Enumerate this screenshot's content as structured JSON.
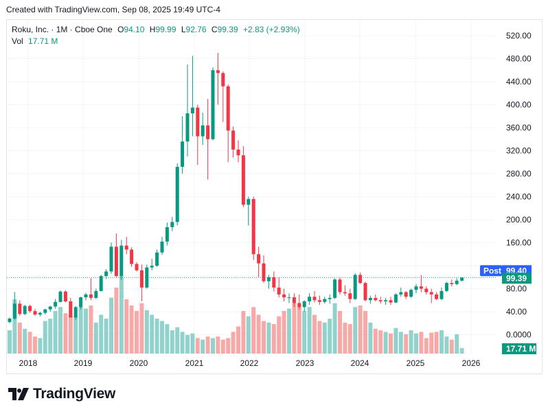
{
  "header": {
    "created_text": "Created with TradingView.com, Sep 08, 2025 19:49 UTC-4"
  },
  "legend": {
    "symbol": "Roku, Inc. · 1M · Cboe One",
    "o_label": "O",
    "o_value": "94.10",
    "h_label": "H",
    "h_value": "99.99",
    "l_label": "L",
    "l_value": "92.76",
    "c_label": "C",
    "c_value": "99.39",
    "change": "+2.83 (+2.93%)",
    "vol_label": "Vol",
    "vol_value": "17.71 M"
  },
  "price_tags": {
    "post_label": "Post",
    "post_value": "99.40",
    "last_value": "99.39",
    "vol_value": "17.71 M"
  },
  "brand": {
    "name": "TradingView",
    "logo_icon": "tradingview-logo-icon"
  },
  "colors": {
    "up": "#089981",
    "down": "#f23645",
    "vol_up": "#92d2cc",
    "vol_down": "#f7a9a7",
    "post": "#2962ff"
  },
  "chart_data": {
    "type": "candlestick",
    "interval": "1M",
    "y_ticks": [
      0,
      40,
      80,
      120,
      160,
      200,
      240,
      280,
      320,
      360,
      400,
      440,
      480,
      520
    ],
    "y_tick_labels": [
      "0.0000",
      "40.00",
      "80.00",
      "",
      "160.00",
      "200.00",
      "240.00",
      "280.00",
      "320.00",
      "360.00",
      "400.00",
      "440.00",
      "480.00",
      "520.00"
    ],
    "x_labels": [
      "2018",
      "2019",
      "2020",
      "2021",
      "2022",
      "2023",
      "2024",
      "2025",
      "2026"
    ],
    "ylim": [
      0,
      530
    ],
    "volume_scale_max": 100,
    "candles": [
      {
        "o": 22,
        "h": 30,
        "l": 20,
        "c": 28,
        "v": 30
      },
      {
        "o": 28,
        "h": 74,
        "l": 26,
        "c": 54,
        "v": 70
      },
      {
        "o": 54,
        "h": 60,
        "l": 33,
        "c": 36,
        "v": 40
      },
      {
        "o": 36,
        "h": 52,
        "l": 34,
        "c": 50,
        "v": 32
      },
      {
        "o": 50,
        "h": 52,
        "l": 38,
        "c": 41,
        "v": 28
      },
      {
        "o": 41,
        "h": 45,
        "l": 33,
        "c": 35,
        "v": 22
      },
      {
        "o": 35,
        "h": 40,
        "l": 32,
        "c": 38,
        "v": 20
      },
      {
        "o": 38,
        "h": 45,
        "l": 35,
        "c": 44,
        "v": 42
      },
      {
        "o": 44,
        "h": 50,
        "l": 40,
        "c": 49,
        "v": 45
      },
      {
        "o": 49,
        "h": 62,
        "l": 45,
        "c": 57,
        "v": 55
      },
      {
        "o": 57,
        "h": 77,
        "l": 56,
        "c": 75,
        "v": 60
      },
      {
        "o": 75,
        "h": 77,
        "l": 56,
        "c": 58,
        "v": 52
      },
      {
        "o": 58,
        "h": 64,
        "l": 30,
        "c": 30,
        "v": 50
      },
      {
        "o": 30,
        "h": 50,
        "l": 26,
        "c": 48,
        "v": 48
      },
      {
        "o": 48,
        "h": 66,
        "l": 44,
        "c": 65,
        "v": 60
      },
      {
        "o": 65,
        "h": 73,
        "l": 60,
        "c": 70,
        "v": 58
      },
      {
        "o": 70,
        "h": 98,
        "l": 60,
        "c": 64,
        "v": 62
      },
      {
        "o": 64,
        "h": 80,
        "l": 62,
        "c": 76,
        "v": 40
      },
      {
        "o": 76,
        "h": 104,
        "l": 75,
        "c": 102,
        "v": 50
      },
      {
        "o": 102,
        "h": 114,
        "l": 97,
        "c": 110,
        "v": 45
      },
      {
        "o": 110,
        "h": 160,
        "l": 106,
        "c": 153,
        "v": 72
      },
      {
        "o": 153,
        "h": 176,
        "l": 100,
        "c": 102,
        "v": 85
      },
      {
        "o": 102,
        "h": 165,
        "l": 95,
        "c": 155,
        "v": 100
      },
      {
        "o": 155,
        "h": 170,
        "l": 140,
        "c": 148,
        "v": 70
      },
      {
        "o": 148,
        "h": 152,
        "l": 118,
        "c": 123,
        "v": 62
      },
      {
        "o": 123,
        "h": 126,
        "l": 110,
        "c": 112,
        "v": 55
      },
      {
        "o": 112,
        "h": 122,
        "l": 58,
        "c": 82,
        "v": 65
      },
      {
        "o": 82,
        "h": 122,
        "l": 80,
        "c": 117,
        "v": 56
      },
      {
        "o": 117,
        "h": 132,
        "l": 112,
        "c": 120,
        "v": 50
      },
      {
        "o": 120,
        "h": 148,
        "l": 118,
        "c": 143,
        "v": 45
      },
      {
        "o": 143,
        "h": 170,
        "l": 139,
        "c": 162,
        "v": 42
      },
      {
        "o": 162,
        "h": 195,
        "l": 155,
        "c": 187,
        "v": 38
      },
      {
        "o": 187,
        "h": 205,
        "l": 180,
        "c": 196,
        "v": 30
      },
      {
        "o": 196,
        "h": 298,
        "l": 190,
        "c": 292,
        "v": 34
      },
      {
        "o": 292,
        "h": 380,
        "l": 280,
        "c": 336,
        "v": 28
      },
      {
        "o": 336,
        "h": 470,
        "l": 310,
        "c": 385,
        "v": 24
      },
      {
        "o": 385,
        "h": 485,
        "l": 345,
        "c": 395,
        "v": 26
      },
      {
        "o": 395,
        "h": 400,
        "l": 295,
        "c": 345,
        "v": 20
      },
      {
        "o": 345,
        "h": 386,
        "l": 330,
        "c": 364,
        "v": 18
      },
      {
        "o": 364,
        "h": 410,
        "l": 270,
        "c": 340,
        "v": 22
      },
      {
        "o": 340,
        "h": 465,
        "l": 338,
        "c": 460,
        "v": 20
      },
      {
        "o": 460,
        "h": 490,
        "l": 400,
        "c": 455,
        "v": 22
      },
      {
        "o": 455,
        "h": 458,
        "l": 370,
        "c": 432,
        "v": 18
      },
      {
        "o": 432,
        "h": 435,
        "l": 300,
        "c": 355,
        "v": 20
      },
      {
        "o": 355,
        "h": 362,
        "l": 308,
        "c": 322,
        "v": 28
      },
      {
        "o": 322,
        "h": 338,
        "l": 300,
        "c": 312,
        "v": 35
      },
      {
        "o": 312,
        "h": 328,
        "l": 222,
        "c": 226,
        "v": 55
      },
      {
        "o": 226,
        "h": 240,
        "l": 190,
        "c": 236,
        "v": 48
      },
      {
        "o": 236,
        "h": 240,
        "l": 130,
        "c": 140,
        "v": 60
      },
      {
        "o": 140,
        "h": 153,
        "l": 100,
        "c": 124,
        "v": 50
      },
      {
        "o": 124,
        "h": 138,
        "l": 90,
        "c": 93,
        "v": 42
      },
      {
        "o": 93,
        "h": 104,
        "l": 80,
        "c": 100,
        "v": 40
      },
      {
        "o": 100,
        "h": 110,
        "l": 75,
        "c": 82,
        "v": 38
      },
      {
        "o": 82,
        "h": 100,
        "l": 65,
        "c": 70,
        "v": 48
      },
      {
        "o": 70,
        "h": 80,
        "l": 58,
        "c": 65,
        "v": 55
      },
      {
        "o": 65,
        "h": 72,
        "l": 55,
        "c": 65,
        "v": 58
      },
      {
        "o": 65,
        "h": 72,
        "l": 48,
        "c": 55,
        "v": 65
      },
      {
        "o": 55,
        "h": 70,
        "l": 44,
        "c": 48,
        "v": 60
      },
      {
        "o": 48,
        "h": 60,
        "l": 40,
        "c": 58,
        "v": 55
      },
      {
        "o": 58,
        "h": 72,
        "l": 52,
        "c": 66,
        "v": 60
      },
      {
        "o": 66,
        "h": 76,
        "l": 56,
        "c": 60,
        "v": 50
      },
      {
        "o": 60,
        "h": 68,
        "l": 52,
        "c": 57,
        "v": 42
      },
      {
        "o": 57,
        "h": 66,
        "l": 54,
        "c": 62,
        "v": 40
      },
      {
        "o": 62,
        "h": 70,
        "l": 54,
        "c": 64,
        "v": 45
      },
      {
        "o": 64,
        "h": 98,
        "l": 62,
        "c": 96,
        "v": 65
      },
      {
        "o": 96,
        "h": 99,
        "l": 70,
        "c": 74,
        "v": 55
      },
      {
        "o": 74,
        "h": 86,
        "l": 68,
        "c": 72,
        "v": 40
      },
      {
        "o": 72,
        "h": 80,
        "l": 55,
        "c": 62,
        "v": 38
      },
      {
        "o": 62,
        "h": 107,
        "l": 60,
        "c": 104,
        "v": 60
      },
      {
        "o": 104,
        "h": 108,
        "l": 88,
        "c": 90,
        "v": 62
      },
      {
        "o": 90,
        "h": 92,
        "l": 58,
        "c": 60,
        "v": 55
      },
      {
        "o": 60,
        "h": 68,
        "l": 54,
        "c": 64,
        "v": 40
      },
      {
        "o": 64,
        "h": 70,
        "l": 58,
        "c": 60,
        "v": 32
      },
      {
        "o": 60,
        "h": 66,
        "l": 54,
        "c": 58,
        "v": 30
      },
      {
        "o": 58,
        "h": 64,
        "l": 52,
        "c": 60,
        "v": 28
      },
      {
        "o": 60,
        "h": 66,
        "l": 52,
        "c": 56,
        "v": 26
      },
      {
        "o": 56,
        "h": 72,
        "l": 55,
        "c": 70,
        "v": 33
      },
      {
        "o": 70,
        "h": 82,
        "l": 66,
        "c": 74,
        "v": 28
      },
      {
        "o": 74,
        "h": 76,
        "l": 62,
        "c": 66,
        "v": 25
      },
      {
        "o": 66,
        "h": 80,
        "l": 64,
        "c": 78,
        "v": 30
      },
      {
        "o": 78,
        "h": 88,
        "l": 72,
        "c": 84,
        "v": 26
      },
      {
        "o": 84,
        "h": 104,
        "l": 74,
        "c": 80,
        "v": 28
      },
      {
        "o": 80,
        "h": 84,
        "l": 70,
        "c": 74,
        "v": 20
      },
      {
        "o": 74,
        "h": 80,
        "l": 55,
        "c": 70,
        "v": 27
      },
      {
        "o": 70,
        "h": 74,
        "l": 60,
        "c": 62,
        "v": 28
      },
      {
        "o": 62,
        "h": 82,
        "l": 60,
        "c": 76,
        "v": 30
      },
      {
        "o": 76,
        "h": 92,
        "l": 74,
        "c": 90,
        "v": 22
      },
      {
        "o": 90,
        "h": 96,
        "l": 84,
        "c": 88,
        "v": 18
      },
      {
        "o": 88,
        "h": 98,
        "l": 86,
        "c": 94,
        "v": 25
      },
      {
        "o": 94,
        "h": 99.99,
        "l": 92.76,
        "c": 99.39,
        "v": 7
      }
    ]
  }
}
